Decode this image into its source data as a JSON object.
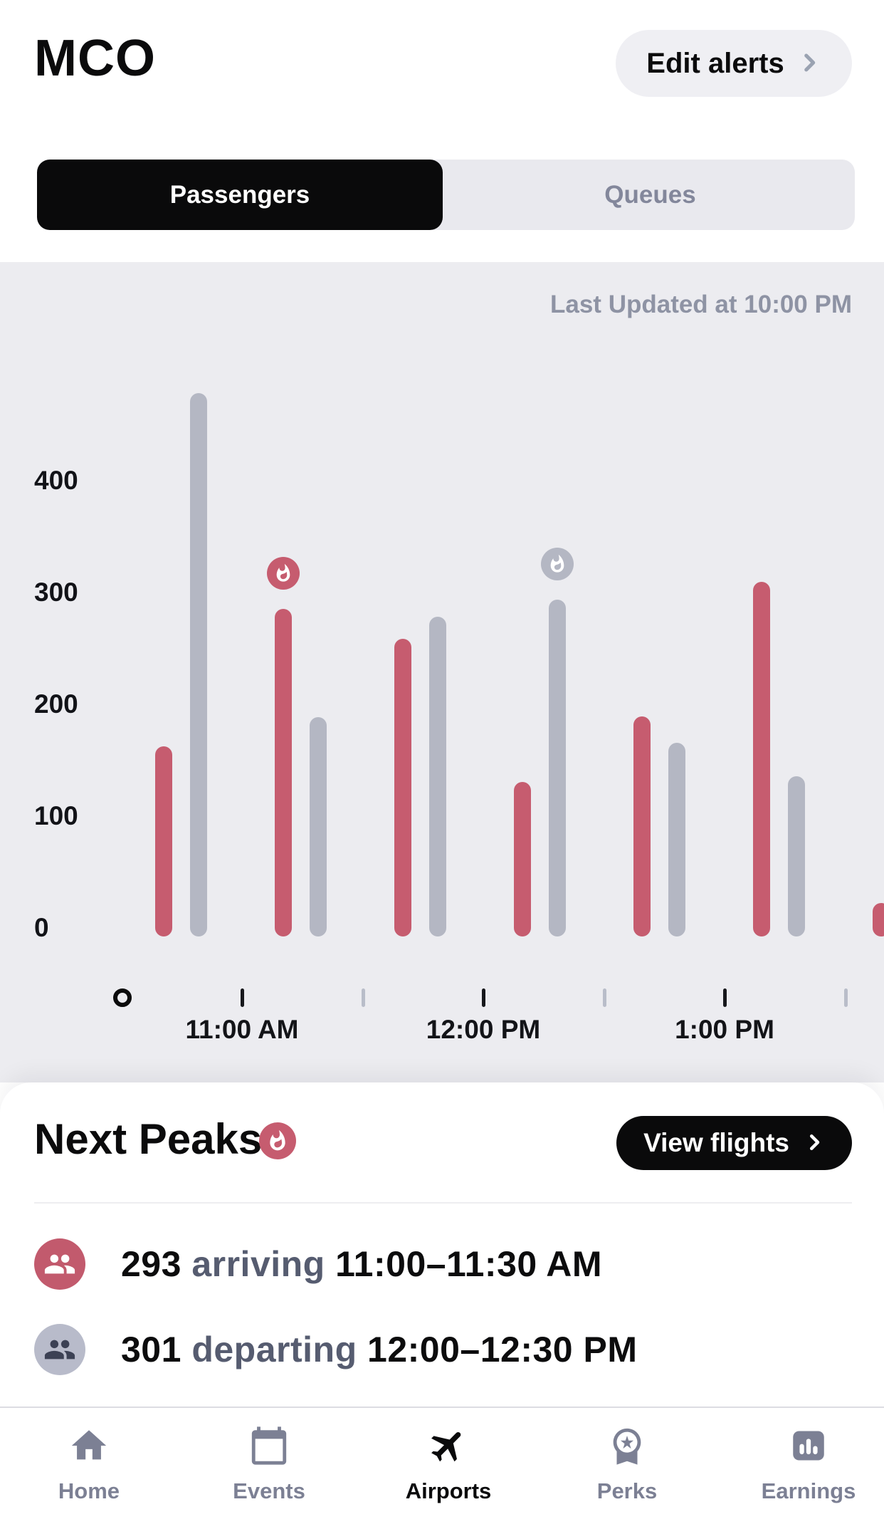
{
  "header": {
    "title": "MCO",
    "edit_alerts_label": "Edit alerts"
  },
  "tabs": {
    "passengers_label": "Passengers",
    "queues_label": "Queues",
    "active": "Passengers"
  },
  "chart": {
    "last_updated": "Last Updated at 10:00 PM"
  },
  "chart_data": {
    "type": "bar",
    "y_ticks": [
      0,
      100,
      200,
      300,
      400
    ],
    "ylim": [
      0,
      500
    ],
    "x_tick_labels": [
      "11:00 AM",
      "12:00 PM",
      "1:00 PM"
    ],
    "legend": [
      "arriving",
      "departing"
    ],
    "slots": [
      {
        "slot": "10:30–11:00 AM",
        "arriving": 170,
        "departing": 486,
        "peak": null
      },
      {
        "slot": "11:00–11:30 AM",
        "arriving": 293,
        "departing": 196,
        "peak": "arriving"
      },
      {
        "slot": "11:30 AM–12:00 PM",
        "arriving": 266,
        "departing": 286,
        "peak": null
      },
      {
        "slot": "12:00–12:30 PM",
        "arriving": 138,
        "departing": 301,
        "peak": "departing"
      },
      {
        "slot": "12:30–1:00 PM",
        "arriving": 197,
        "departing": 173,
        "peak": null
      },
      {
        "slot": "1:00–1:30 PM",
        "arriving": 317,
        "departing": 143,
        "peak": null
      },
      {
        "slot": "1:30–2:00 PM",
        "arriving": 30,
        "departing": null,
        "peak": null
      }
    ]
  },
  "next_peaks": {
    "title": "Next Peaks",
    "view_flights_label": "View flights",
    "rows": [
      {
        "count": "293",
        "verb": "arriving",
        "time": "11:00–11:30 AM",
        "type": "arriving"
      },
      {
        "count": "301",
        "verb": "departing",
        "time": "12:00–12:30 PM",
        "type": "departing"
      }
    ]
  },
  "nav": {
    "items": [
      {
        "label": "Home",
        "icon": "home",
        "active": false
      },
      {
        "label": "Events",
        "icon": "calendar",
        "active": false
      },
      {
        "label": "Airports",
        "icon": "plane",
        "active": true
      },
      {
        "label": "Perks",
        "icon": "medal",
        "active": false
      },
      {
        "label": "Earnings",
        "icon": "bar-chart",
        "active": false
      }
    ]
  },
  "colors": {
    "arriving": "#c65c6f",
    "departing": "#b4b7c3",
    "chart_bg": "#ececf0",
    "accent_black": "#0a0a0b",
    "muted_text": "#8e93a4",
    "verb_text": "#565c70",
    "nav_inactive": "#7c8094",
    "avatar_arriving": "#c25a6d",
    "avatar_departing": "#b8bbca",
    "avatar_departing_icon": "#3c4154",
    "tick_minor": "#b9bdc9",
    "tick_major": "#17181c"
  }
}
